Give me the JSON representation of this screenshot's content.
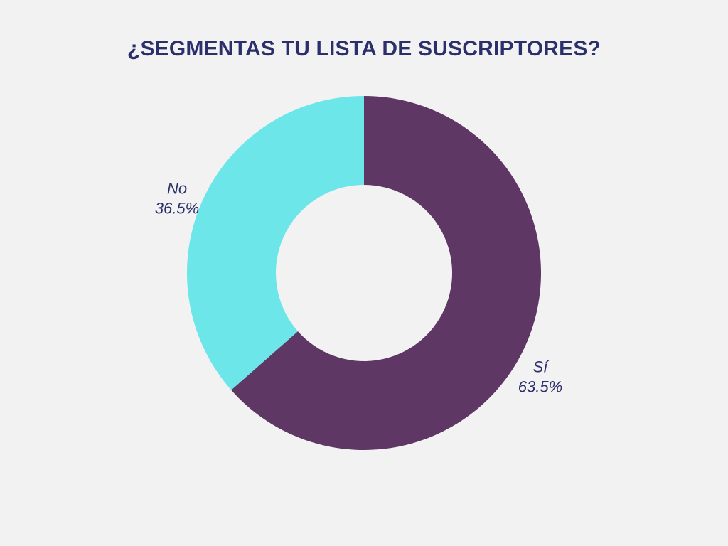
{
  "chart_data": {
    "type": "pie",
    "title": "¿SEGMENTAS TU LISTA DE SUSCRIPTORES?",
    "donut": true,
    "slices": [
      {
        "label": "Sí",
        "value": 63.5,
        "value_label": "63.5%",
        "color": "#5e3765"
      },
      {
        "label": "No",
        "value": 36.5,
        "value_label": "36.5%",
        "color": "#6ce6e8"
      }
    ],
    "start_angle": "12 o'clock",
    "direction": "clockwise",
    "background": "#f2f2f2",
    "label_color": "#2b2f6b"
  }
}
